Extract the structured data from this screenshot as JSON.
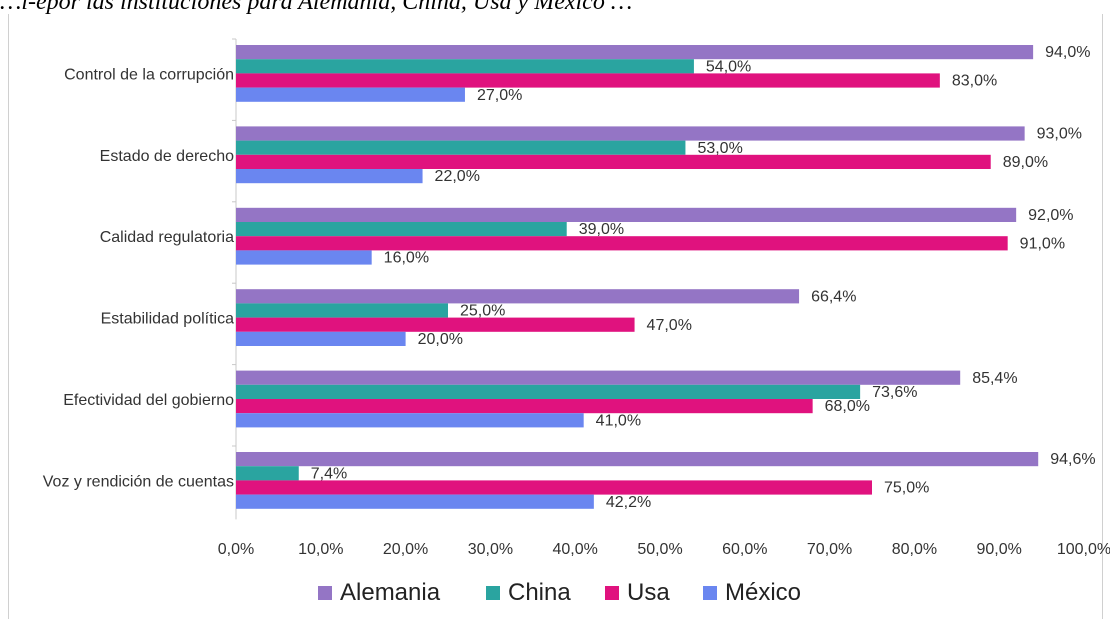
{
  "title": "…l-epor las instituciones para Alemania, China, Usa y México …",
  "chart_data": {
    "type": "bar",
    "orientation": "horizontal",
    "categories": [
      "Control de la corrupción",
      "Estado de derecho",
      "Calidad regulatoria",
      "Estabilidad política",
      "Efectividad del gobierno",
      "Voz y rendición de cuentas"
    ],
    "series": [
      {
        "name": "Alemania",
        "color": "#9475c5",
        "values": [
          94.0,
          93.0,
          92.0,
          66.4,
          85.4,
          94.6
        ],
        "labels": [
          "94,0%",
          "93,0%",
          "92,0%",
          "66,4%",
          "85,4%",
          "94,6%"
        ]
      },
      {
        "name": "China",
        "color": "#2aa4a0",
        "values": [
          54.0,
          53.0,
          39.0,
          25.0,
          73.6,
          7.4
        ],
        "labels": [
          "54,0%",
          "53,0%",
          "39,0%",
          "25,0%",
          "73,6%",
          "7,4%"
        ]
      },
      {
        "name": "Usa",
        "color": "#e0127e",
        "values": [
          83.0,
          89.0,
          91.0,
          47.0,
          68.0,
          75.0
        ],
        "labels": [
          "83,0%",
          "89,0%",
          "91,0%",
          "47,0%",
          "68,0%",
          "75,0%"
        ]
      },
      {
        "name": "México",
        "color": "#6a86f0",
        "values": [
          27.0,
          22.0,
          16.0,
          20.0,
          41.0,
          42.2
        ],
        "labels": [
          "27,0%",
          "22,0%",
          "16,0%",
          "20,0%",
          "41,0%",
          "42,2%"
        ]
      }
    ],
    "x_ticks": [
      "0,0%",
      "10,0%",
      "20,0%",
      "30,0%",
      "40,0%",
      "50,0%",
      "60,0%",
      "70,0%",
      "80,0%",
      "90,0%",
      "100,0%"
    ],
    "xlim": [
      0,
      100
    ],
    "grid": false,
    "legend_position": "bottom"
  }
}
